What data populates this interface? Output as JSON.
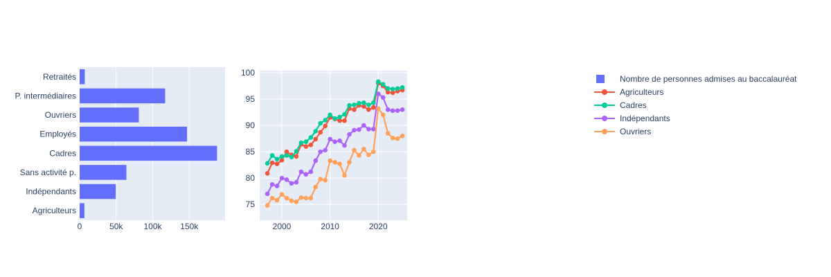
{
  "colors": {
    "bar": "#636EFA",
    "agriculteurs": "#EF553B",
    "cadres": "#00CC96",
    "independants": "#AB63FA",
    "ouvriers": "#FFA15A",
    "plot_background": "#E5ECF6",
    "gridline": "#FFFFFF",
    "text": "#2A3F5F"
  },
  "legend": {
    "items": [
      {
        "label": "Nombre de personnes admises au baccalauréat",
        "symbol": "square",
        "color": "#636EFA"
      },
      {
        "label": "Agriculteurs",
        "symbol": "line",
        "color": "#EF553B"
      },
      {
        "label": "Cadres",
        "symbol": "line",
        "color": "#00CC96"
      },
      {
        "label": "Indépendants",
        "symbol": "line",
        "color": "#AB63FA"
      },
      {
        "label": "Ouvriers",
        "symbol": "line",
        "color": "#FFA15A"
      }
    ]
  },
  "chart_data": [
    {
      "type": "bar",
      "orientation": "horizontal",
      "name": "Nombre de personnes admises au baccalauréat",
      "categories": [
        "Retraités",
        "P. intermédiaires",
        "Ouvriers",
        "Employés",
        "Cadres",
        "Sans activité p.",
        "Indépendants",
        "Agriculteurs"
      ],
      "values": [
        7000,
        117000,
        81000,
        147000,
        188000,
        64000,
        49500,
        6500
      ],
      "xticks": [
        0,
        50000,
        100000,
        150000
      ],
      "xtick_labels": [
        "0",
        "50k",
        "100k",
        "150k"
      ],
      "xlim": [
        0,
        199000
      ],
      "grid": true,
      "bar_color": "#636EFA"
    },
    {
      "type": "line",
      "title": "",
      "xlabel": "",
      "ylabel": "",
      "x": [
        1997,
        1998,
        1999,
        2000,
        2001,
        2002,
        2003,
        2004,
        2005,
        2006,
        2007,
        2008,
        2009,
        2010,
        2011,
        2012,
        2013,
        2014,
        2015,
        2016,
        2017,
        2018,
        2019,
        2020,
        2021,
        2022,
        2023,
        2024,
        2025
      ],
      "series": [
        {
          "name": "Agriculteurs",
          "color": "#EF553B",
          "values": [
            80.9,
            82.9,
            82.7,
            83.4,
            85.0,
            84.4,
            84.1,
            86.4,
            86.0,
            86.3,
            87.4,
            88.7,
            89.9,
            91.5,
            91.2,
            90.9,
            90.9,
            93.2,
            93.0,
            93.8,
            93.6,
            93.0,
            93.4,
            98.0,
            97.5,
            96.3,
            96.2,
            96.5,
            96.7
          ]
        },
        {
          "name": "Cadres",
          "color": "#00CC96",
          "values": [
            82.8,
            84.3,
            83.6,
            84.1,
            84.3,
            84.0,
            85.1,
            86.7,
            86.9,
            87.7,
            88.9,
            90.4,
            91.0,
            92.0,
            91.3,
            91.6,
            92.1,
            93.8,
            93.9,
            94.2,
            94.3,
            93.9,
            94.3,
            98.3,
            97.8,
            97.0,
            96.9,
            97.0,
            97.2
          ]
        },
        {
          "name": "Indépendants",
          "color": "#AB63FA",
          "values": [
            77.0,
            78.8,
            78.5,
            80.0,
            79.7,
            79.0,
            79.2,
            81.2,
            80.7,
            81.2,
            83.3,
            85.0,
            85.3,
            87.4,
            86.9,
            87.1,
            86.2,
            88.3,
            89.1,
            89.2,
            90.0,
            89.3,
            89.3,
            96.0,
            95.3,
            93.0,
            92.8,
            92.8,
            93.0
          ]
        },
        {
          "name": "Ouvriers",
          "color": "#FFA15A",
          "values": [
            74.8,
            76.2,
            75.8,
            76.9,
            76.2,
            75.7,
            75.5,
            76.3,
            76.2,
            76.2,
            78.3,
            79.8,
            79.6,
            83.3,
            83.0,
            82.7,
            80.5,
            83.0,
            85.3,
            84.3,
            85.5,
            84.4,
            85.0,
            93.2,
            92.0,
            88.5,
            87.6,
            87.5,
            88.0
          ]
        }
      ],
      "xticks": [
        2000,
        2010,
        2020
      ],
      "yticks": [
        75,
        80,
        85,
        90,
        95,
        100
      ],
      "xlim": [
        1995.4,
        2026
      ],
      "ylim": [
        72,
        100.4
      ],
      "grid": true,
      "legend_position": "right"
    }
  ]
}
